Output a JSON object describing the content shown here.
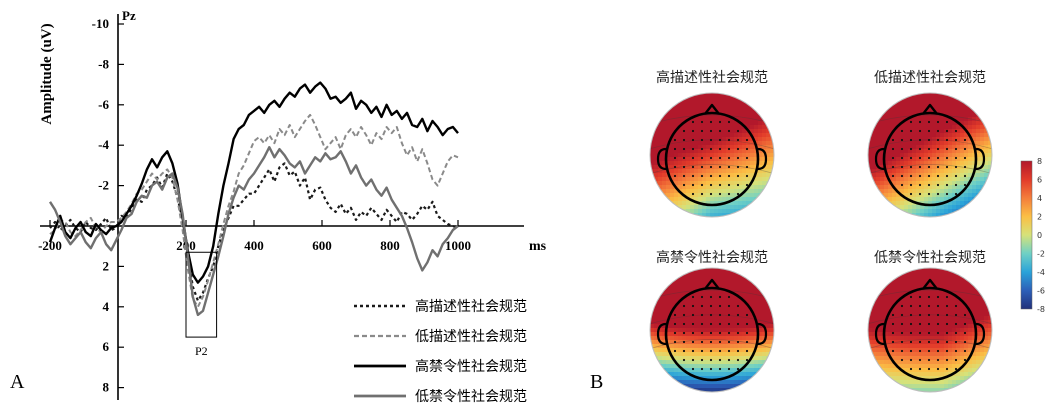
{
  "panels": {
    "a_label": "A",
    "b_label": "B"
  },
  "chart_data": [
    {
      "type": "line",
      "channel": "Pz",
      "ylabel": "Amplitude (uV)",
      "xunit": "ms",
      "xlim": [
        -200,
        1000
      ],
      "ylim": [
        8,
        -10
      ],
      "y_inverted": true,
      "xticks": [
        "-200",
        "200",
        "400",
        "600",
        "800",
        "1000"
      ],
      "yticks": [
        "-10",
        "-8",
        "-6",
        "-4",
        "-2",
        "2",
        "4",
        "6",
        "8"
      ],
      "annotation": {
        "label": "P2",
        "x_range": [
          200,
          290
        ],
        "y_range": [
          1.3,
          5.5
        ]
      },
      "legend_position": "bottom-right",
      "series": [
        {
          "name": "高描述性社会规范",
          "style": "dotted-dark",
          "color": "#1a1a1a",
          "x": [
            -200,
            -185,
            -170,
            -155,
            -140,
            -125,
            -110,
            -95,
            -80,
            -65,
            -50,
            -35,
            -20,
            -5,
            10,
            25,
            40,
            55,
            70,
            85,
            100,
            115,
            130,
            145,
            160,
            175,
            190,
            205,
            220,
            235,
            250,
            265,
            280,
            295,
            310,
            325,
            340,
            355,
            370,
            385,
            400,
            415,
            430,
            445,
            460,
            475,
            490,
            505,
            520,
            535,
            550,
            565,
            580,
            595,
            610,
            625,
            640,
            655,
            670,
            685,
            700,
            715,
            730,
            745,
            760,
            775,
            790,
            805,
            820,
            835,
            850,
            865,
            880,
            895,
            910,
            925,
            940,
            955,
            970,
            985,
            1000
          ],
          "y": [
            0.1,
            -0.2,
            0.2,
            0.0,
            -0.3,
            0.1,
            0.3,
            -0.2,
            0.1,
            0.2,
            -0.1,
            -0.4,
            0.2,
            0.1,
            -0.5,
            -0.4,
            -0.9,
            -1.3,
            -1.2,
            -1.8,
            -2.0,
            -2.4,
            -1.9,
            -2.6,
            -2.2,
            -1.4,
            -0.3,
            1.4,
            3.0,
            3.7,
            3.3,
            2.6,
            2.0,
            1.0,
            0.2,
            -0.4,
            -1.0,
            -1.0,
            -1.3,
            -1.6,
            -1.6,
            -2.0,
            -2.4,
            -2.8,
            -2.2,
            -2.9,
            -3.1,
            -2.5,
            -2.7,
            -2.0,
            -2.4,
            -1.3,
            -1.8,
            -1.9,
            -1.3,
            -0.9,
            -0.7,
            -1.1,
            -0.6,
            -0.9,
            -0.3,
            -0.7,
            -0.5,
            -0.9,
            -0.6,
            -0.3,
            -0.8,
            -0.5,
            -0.2,
            -0.7,
            -0.6,
            -0.3,
            -0.6,
            -1.0,
            -0.8,
            -1.2,
            -0.5,
            -0.3,
            -0.1,
            0.0,
            0.1
          ]
        },
        {
          "name": "低描述性社会规范",
          "style": "dashed-gray",
          "color": "#8a8a8a",
          "x": [
            -200,
            -185,
            -170,
            -155,
            -140,
            -125,
            -110,
            -95,
            -80,
            -65,
            -50,
            -35,
            -20,
            -5,
            10,
            25,
            40,
            55,
            70,
            85,
            100,
            115,
            130,
            145,
            160,
            175,
            190,
            205,
            220,
            235,
            250,
            265,
            280,
            295,
            310,
            325,
            340,
            355,
            370,
            385,
            400,
            415,
            430,
            445,
            460,
            475,
            490,
            505,
            520,
            535,
            550,
            565,
            580,
            595,
            610,
            625,
            640,
            655,
            670,
            685,
            700,
            715,
            730,
            745,
            760,
            775,
            790,
            805,
            820,
            835,
            850,
            865,
            880,
            895,
            910,
            925,
            940,
            955,
            970,
            985,
            1000
          ],
          "y": [
            0.4,
            0.2,
            -0.3,
            -0.2,
            0.3,
            0.5,
            0.2,
            -0.2,
            -0.4,
            0.1,
            0.3,
            0.0,
            -0.2,
            -0.2,
            -0.4,
            -0.7,
            -1.1,
            -1.6,
            -1.8,
            -2.2,
            -2.6,
            -2.3,
            -2.6,
            -2.8,
            -2.4,
            -1.3,
            0.2,
            2.1,
            3.6,
            4.0,
            3.5,
            2.7,
            1.8,
            0.9,
            -0.1,
            -1.0,
            -1.7,
            -2.6,
            -3.0,
            -3.6,
            -4.2,
            -4.4,
            -4.1,
            -4.5,
            -4.1,
            -4.8,
            -4.5,
            -5.0,
            -4.4,
            -4.8,
            -5.2,
            -5.5,
            -5.0,
            -4.4,
            -3.8,
            -4.1,
            -4.4,
            -3.8,
            -4.5,
            -4.8,
            -4.4,
            -4.9,
            -4.5,
            -4.0,
            -4.6,
            -4.3,
            -4.9,
            -4.6,
            -4.9,
            -4.1,
            -3.5,
            -3.9,
            -3.2,
            -3.8,
            -3.1,
            -2.3,
            -2.0,
            -2.6,
            -3.2,
            -3.5,
            -3.4
          ]
        },
        {
          "name": "高禁令性社会规范",
          "style": "solid-black",
          "color": "#000000",
          "x": [
            -200,
            -185,
            -170,
            -155,
            -140,
            -125,
            -110,
            -95,
            -80,
            -65,
            -50,
            -35,
            -20,
            -5,
            10,
            25,
            40,
            55,
            70,
            85,
            100,
            115,
            130,
            145,
            160,
            175,
            190,
            205,
            220,
            235,
            250,
            265,
            280,
            295,
            310,
            325,
            340,
            355,
            370,
            385,
            400,
            415,
            430,
            445,
            460,
            475,
            490,
            505,
            520,
            535,
            550,
            565,
            580,
            595,
            610,
            625,
            640,
            655,
            670,
            685,
            700,
            715,
            730,
            745,
            760,
            775,
            790,
            805,
            820,
            835,
            850,
            865,
            880,
            895,
            910,
            925,
            940,
            955,
            970,
            985,
            1000
          ],
          "y": [
            0.8,
            0.1,
            -0.5,
            0.3,
            0.6,
            0.1,
            -0.2,
            0.3,
            0.5,
            -0.1,
            0.2,
            0.4,
            0.1,
            0.0,
            -0.2,
            -0.6,
            -1.0,
            -1.5,
            -2.1,
            -2.8,
            -3.3,
            -2.9,
            -3.4,
            -3.7,
            -3.1,
            -2.1,
            -0.4,
            1.2,
            2.4,
            2.8,
            2.5,
            2.0,
            1.0,
            -0.6,
            -2.0,
            -3.1,
            -4.3,
            -4.8,
            -5.0,
            -5.5,
            -5.7,
            -5.9,
            -5.6,
            -6.0,
            -6.2,
            -5.9,
            -6.3,
            -6.6,
            -6.4,
            -6.8,
            -7.0,
            -6.6,
            -6.9,
            -7.1,
            -6.8,
            -6.3,
            -6.4,
            -6.1,
            -6.3,
            -6.6,
            -5.8,
            -6.2,
            -6.0,
            -5.6,
            -5.9,
            -5.4,
            -6.0,
            -5.5,
            -5.7,
            -5.3,
            -5.6,
            -5.0,
            -4.9,
            -5.3,
            -4.7,
            -5.2,
            -4.9,
            -4.5,
            -4.8,
            -4.9,
            -4.6
          ]
        },
        {
          "name": "低禁令性社会规范",
          "style": "solid-gray",
          "color": "#707070",
          "x": [
            -200,
            -185,
            -170,
            -155,
            -140,
            -125,
            -110,
            -95,
            -80,
            -65,
            -50,
            -35,
            -20,
            -5,
            10,
            25,
            40,
            55,
            70,
            85,
            100,
            115,
            130,
            145,
            160,
            175,
            190,
            205,
            220,
            235,
            250,
            265,
            280,
            295,
            310,
            325,
            340,
            355,
            370,
            385,
            400,
            415,
            430,
            445,
            460,
            475,
            490,
            505,
            520,
            535,
            550,
            565,
            580,
            595,
            610,
            625,
            640,
            655,
            670,
            685,
            700,
            715,
            730,
            745,
            760,
            775,
            790,
            805,
            820,
            835,
            850,
            865,
            880,
            895,
            910,
            925,
            940,
            955,
            970,
            985,
            1000
          ],
          "y": [
            -1.2,
            -0.8,
            -0.2,
            0.5,
            0.9,
            0.6,
            0.3,
            0.8,
            1.1,
            0.6,
            0.3,
            0.9,
            1.2,
            0.7,
            0.2,
            -0.4,
            -0.6,
            -1.2,
            -1.5,
            -1.4,
            -2.0,
            -2.2,
            -1.8,
            -2.4,
            -2.6,
            -1.9,
            -0.6,
            1.4,
            3.5,
            4.4,
            4.2,
            3.3,
            2.4,
            1.5,
            0.5,
            -0.6,
            -1.4,
            -2.0,
            -1.8,
            -2.3,
            -2.6,
            -3.0,
            -3.4,
            -3.9,
            -3.4,
            -3.8,
            -3.5,
            -3.1,
            -2.9,
            -3.2,
            -2.6,
            -3.0,
            -3.4,
            -3.2,
            -3.6,
            -3.3,
            -3.4,
            -3.7,
            -3.2,
            -2.6,
            -3.0,
            -2.4,
            -2.0,
            -2.3,
            -1.8,
            -1.5,
            -1.9,
            -1.3,
            -0.9,
            -0.5,
            0.1,
            0.8,
            1.6,
            2.2,
            1.8,
            1.2,
            1.5,
            0.9,
            0.6,
            0.2,
            0.0
          ]
        }
      ]
    },
    {
      "type": "heatmap",
      "kind": "topographic-maps",
      "maps": [
        {
          "title": "高描述性社会规范",
          "pattern": "descriptive-high"
        },
        {
          "title": "低描述性社会规范",
          "pattern": "descriptive-low"
        },
        {
          "title": "高禁令性社会规范",
          "pattern": "injunctive-high"
        },
        {
          "title": "低禁令性社会规范",
          "pattern": "injunctive-low"
        }
      ],
      "colorbar": {
        "ticks": [
          "8",
          "6",
          "4",
          "2",
          "0",
          "-2",
          "-4",
          "-6",
          "-8"
        ],
        "range": [
          -8,
          8
        ],
        "colors": [
          "#b2182b",
          "#e23b2a",
          "#f47d3b",
          "#fbbf45",
          "#d6e27a",
          "#6fd0c5",
          "#2aa3d9",
          "#2c5fb8",
          "#21307a"
        ]
      }
    }
  ]
}
